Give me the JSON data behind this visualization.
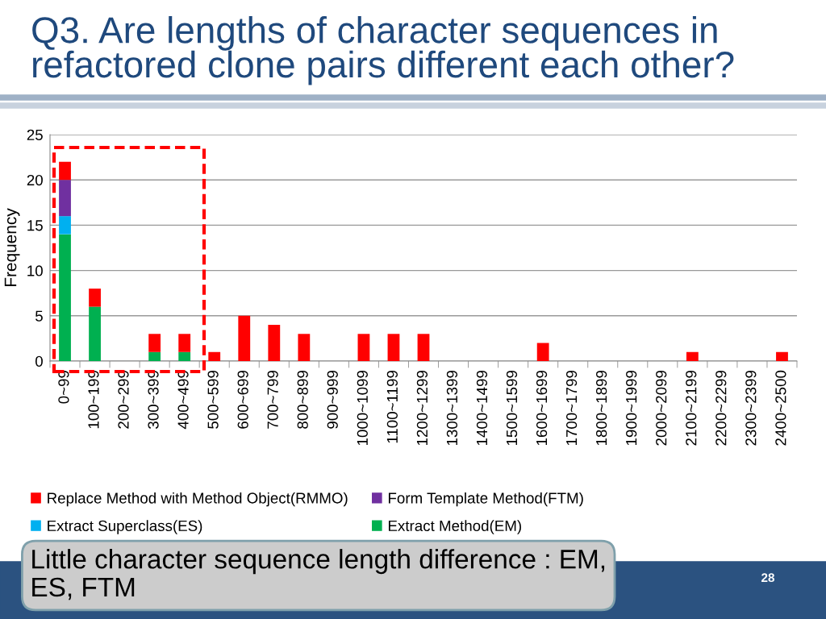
{
  "chart_data": {
    "type": "bar",
    "title": "Q3. Are lengths of character sequences in refactored clone pairs different each other?",
    "ylabel": "Frequency",
    "categories": [
      "0~99",
      "100~199",
      "200~299",
      "300~399",
      "400~499",
      "500~599",
      "600~699",
      "700~799",
      "800~899",
      "900~999",
      "1000~1099",
      "1100~1199",
      "1200~1299",
      "1300~1399",
      "1400~1499",
      "1500~1599",
      "1600~1699",
      "1700~1799",
      "1800~1899",
      "1900~1999",
      "2000~2099",
      "2100~2199",
      "2200~2299",
      "2300~2399",
      "2400~2500"
    ],
    "series": [
      {
        "name": "Extract Method(EM)",
        "color": "#00b050",
        "values": [
          14,
          6,
          0,
          1,
          1,
          0,
          0,
          0,
          0,
          0,
          0,
          0,
          0,
          0,
          0,
          0,
          0,
          0,
          0,
          0,
          0,
          0,
          0,
          0,
          0
        ]
      },
      {
        "name": "Extract Superclass(ES)",
        "color": "#00b0f0",
        "values": [
          2,
          0,
          0,
          0,
          0,
          0,
          0,
          0,
          0,
          0,
          0,
          0,
          0,
          0,
          0,
          0,
          0,
          0,
          0,
          0,
          0,
          0,
          0,
          0,
          0
        ]
      },
      {
        "name": "Form Template Method(FTM)",
        "color": "#7030a0",
        "values": [
          4,
          0,
          0,
          0,
          0,
          0,
          0,
          0,
          0,
          0,
          0,
          0,
          0,
          0,
          0,
          0,
          0,
          0,
          0,
          0,
          0,
          0,
          0,
          0,
          0
        ]
      },
      {
        "name": "Replace Method with Method Object(RMMO)",
        "color": "#ff0000",
        "values": [
          2,
          2,
          0,
          2,
          2,
          1,
          5,
          4,
          3,
          0,
          3,
          3,
          3,
          0,
          0,
          0,
          2,
          0,
          0,
          0,
          0,
          1,
          0,
          0,
          1
        ]
      }
    ],
    "stacked": true,
    "ylim": [
      0,
      25
    ],
    "yticks": [
      0,
      5,
      10,
      15,
      20,
      25
    ],
    "grid": "y",
    "legend": "bottom",
    "annotations": [
      "Little character sequence length difference : EM, ES, FTM",
      "28"
    ]
  }
}
